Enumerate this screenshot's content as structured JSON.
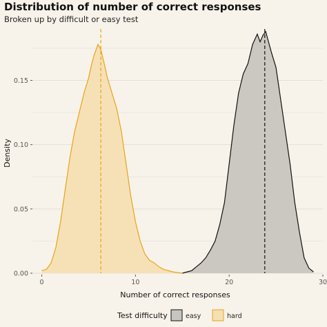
{
  "chart_data": {
    "type": "area",
    "title": "Distribution of number of correct responses",
    "subtitle": "Broken up by difficult or easy test",
    "xlabel": "Number of correct responses",
    "ylabel": "Density",
    "xlim": [
      -1,
      30
    ],
    "ylim": [
      0,
      0.19
    ],
    "x_ticks": [
      0,
      10,
      20,
      30
    ],
    "y_ticks": [
      0.0,
      0.05,
      0.1,
      0.15
    ],
    "y_tick_labels": [
      "0.00",
      "0.05",
      "0.10",
      "0.15"
    ],
    "grid": "horizontal",
    "legend_position": "bottom",
    "legend_title": "Test difficulty",
    "series": [
      {
        "name": "easy",
        "color": "#111111",
        "fill": "#c7c5bf",
        "mean": 23.8,
        "x": [
          15.0,
          15.5,
          16.0,
          16.5,
          17.0,
          17.5,
          18.0,
          18.5,
          19.0,
          19.5,
          20.0,
          20.5,
          21.0,
          21.5,
          22.0,
          22.5,
          23.0,
          23.3,
          23.6,
          23.9,
          24.2,
          24.5,
          25.0,
          25.5,
          26.0,
          26.5,
          27.0,
          27.5,
          28.0,
          28.5,
          29.0
        ],
        "y": [
          0.0,
          0.001,
          0.002,
          0.005,
          0.008,
          0.012,
          0.018,
          0.025,
          0.038,
          0.055,
          0.085,
          0.115,
          0.14,
          0.155,
          0.163,
          0.178,
          0.186,
          0.18,
          0.185,
          0.188,
          0.18,
          0.172,
          0.16,
          0.135,
          0.11,
          0.085,
          0.055,
          0.032,
          0.012,
          0.004,
          0.001
        ]
      },
      {
        "name": "hard",
        "color": "#e8a317",
        "fill": "#f5dfb3",
        "mean": 6.3,
        "x": [
          0.0,
          0.5,
          1.0,
          1.5,
          2.0,
          2.5,
          3.0,
          3.5,
          4.0,
          4.5,
          5.0,
          5.3,
          5.6,
          6.0,
          6.3,
          6.6,
          7.0,
          7.5,
          8.0,
          8.5,
          9.0,
          9.5,
          10.0,
          10.5,
          11.0,
          11.5,
          12.0,
          12.5,
          13.0,
          14.0,
          15.0
        ],
        "y": [
          0.002,
          0.003,
          0.008,
          0.02,
          0.04,
          0.065,
          0.09,
          0.11,
          0.125,
          0.14,
          0.152,
          0.162,
          0.17,
          0.178,
          0.174,
          0.165,
          0.152,
          0.14,
          0.128,
          0.11,
          0.085,
          0.06,
          0.04,
          0.025,
          0.015,
          0.01,
          0.008,
          0.005,
          0.003,
          0.001,
          0.0
        ]
      }
    ]
  }
}
